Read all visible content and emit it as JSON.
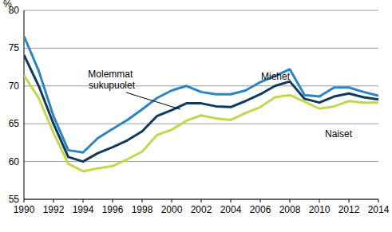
{
  "chart_data": {
    "type": "line",
    "y_label": "%",
    "x": [
      1990,
      1991,
      1992,
      1993,
      1994,
      1995,
      1996,
      1997,
      1998,
      1999,
      2000,
      2001,
      2002,
      2003,
      2004,
      2005,
      2006,
      2007,
      2008,
      2009,
      2010,
      2011,
      2012,
      2013,
      2014
    ],
    "series": [
      {
        "name": "Miehet",
        "color": "#2b84c6",
        "values": [
          76.6,
          72.0,
          66.0,
          61.5,
          61.2,
          63.1,
          64.3,
          65.5,
          66.9,
          68.4,
          69.4,
          70.0,
          69.2,
          68.9,
          68.9,
          69.4,
          70.5,
          71.3,
          72.2,
          68.8,
          68.6,
          69.8,
          69.8,
          69.2,
          68.7
        ]
      },
      {
        "name": "Molemmat sukupuolet",
        "color": "#0e3a5c",
        "values": [
          74.1,
          70.0,
          65.0,
          60.6,
          60.0,
          61.1,
          61.9,
          62.8,
          64.0,
          66.0,
          66.8,
          67.7,
          67.7,
          67.3,
          67.2,
          68.0,
          68.9,
          70.0,
          70.6,
          68.3,
          67.8,
          68.6,
          69.0,
          68.5,
          68.2
        ]
      },
      {
        "name": "Naiset",
        "color": "#c4d64c",
        "values": [
          71.4,
          68.4,
          63.8,
          59.7,
          58.7,
          59.1,
          59.4,
          60.3,
          61.3,
          63.5,
          64.2,
          65.4,
          66.1,
          65.7,
          65.5,
          66.4,
          67.2,
          68.5,
          68.8,
          67.9,
          67.0,
          67.3,
          68.0,
          67.8,
          67.8
        ]
      }
    ],
    "xlim": [
      1990,
      2014
    ],
    "xticks": [
      1990,
      1992,
      1994,
      1996,
      1998,
      2000,
      2002,
      2004,
      2006,
      2008,
      2010,
      2012,
      2014
    ],
    "ylim": [
      55,
      80
    ],
    "yticks": [
      55,
      60,
      65,
      70,
      75,
      80
    ],
    "grid": true
  }
}
